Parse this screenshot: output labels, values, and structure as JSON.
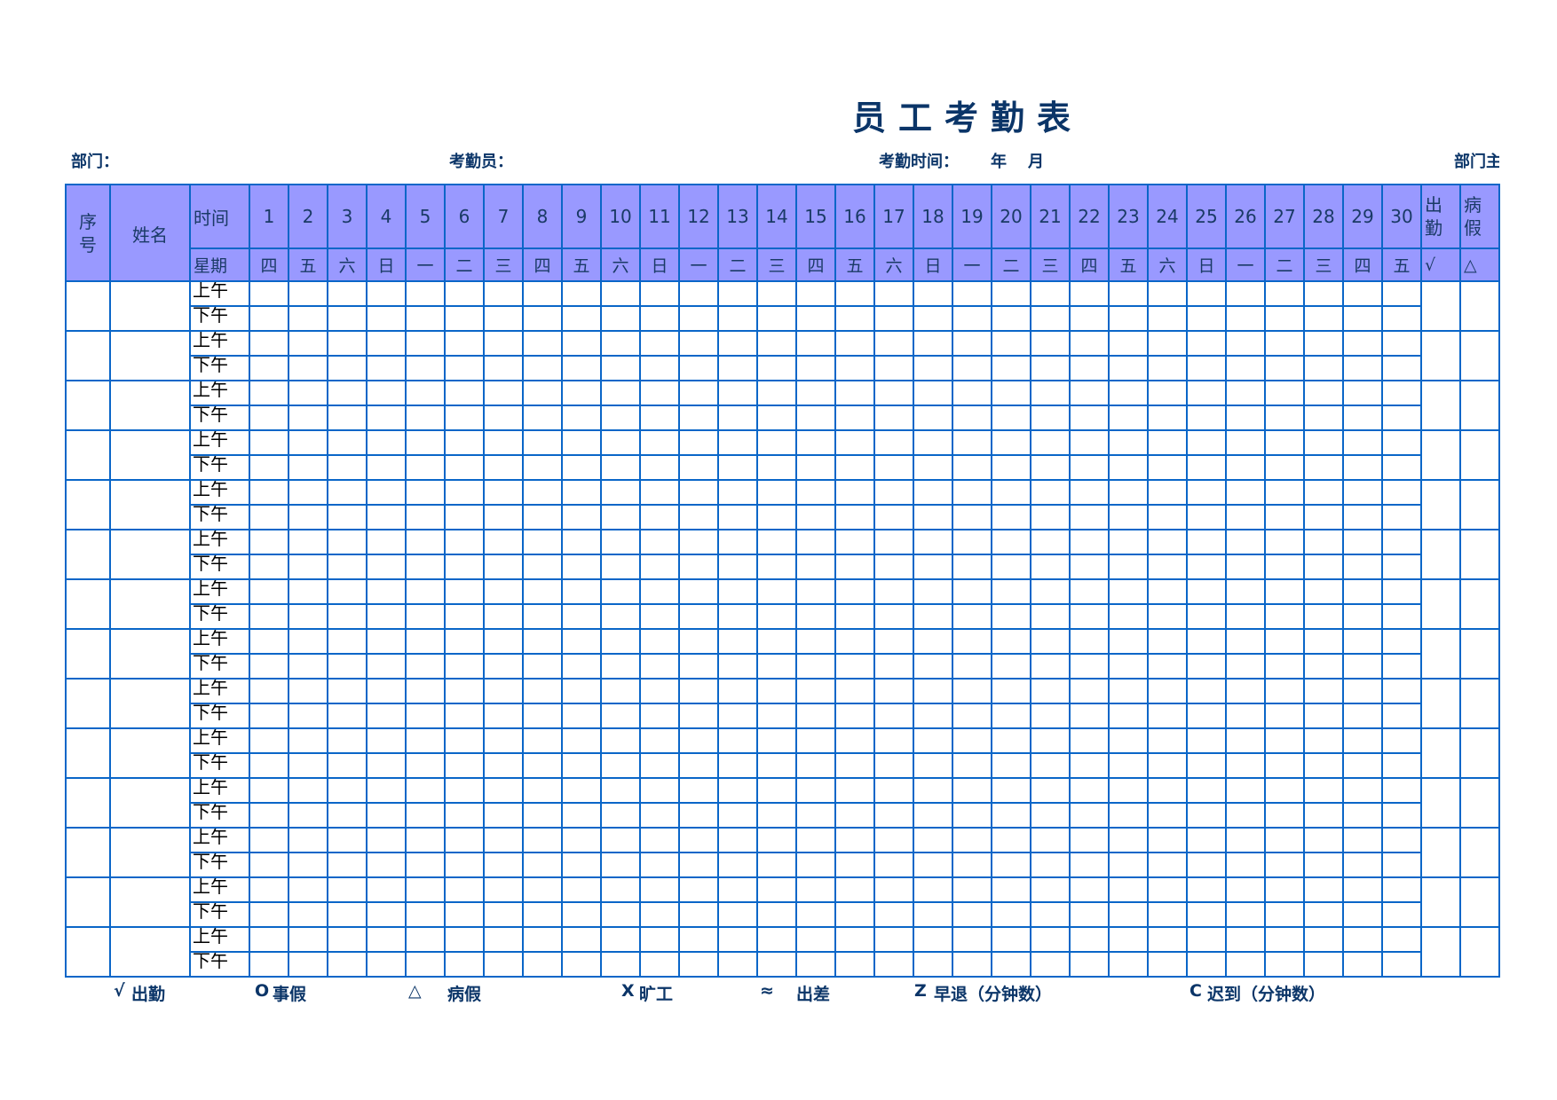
{
  "title": "员工考勤表",
  "meta": {
    "department": "部门：",
    "clerk": "考勤员：",
    "period_label": "考勤时间：",
    "year": "年",
    "month": "月",
    "manager_truncated": "部门主"
  },
  "header": {
    "seq": "序号",
    "seq_line1": "序",
    "seq_line2": "号",
    "name": "姓名",
    "time": "时间",
    "weekday": "星期",
    "attendance_line1": "出",
    "attendance_line2": "勤",
    "sick_line1": "病",
    "sick_line2": "假",
    "attendance_symbol": "√",
    "sick_symbol": "△",
    "days": [
      "1",
      "2",
      "3",
      "4",
      "5",
      "6",
      "7",
      "8",
      "9",
      "10",
      "11",
      "12",
      "13",
      "14",
      "15",
      "16",
      "17",
      "18",
      "19",
      "20",
      "21",
      "22",
      "23",
      "24",
      "25",
      "26",
      "27",
      "28",
      "29",
      "30"
    ],
    "weekdays": [
      "四",
      "五",
      "六",
      "日",
      "一",
      "二",
      "三",
      "四",
      "五",
      "六",
      "日",
      "一",
      "二",
      "三",
      "四",
      "五",
      "六",
      "日",
      "一",
      "二",
      "三",
      "四",
      "五",
      "六",
      "日",
      "一",
      "二",
      "三",
      "四",
      "五"
    ]
  },
  "slots": {
    "am": "上午",
    "pm": "下午"
  },
  "employee_rows": 14,
  "legend": [
    {
      "symbol": "√",
      "label": "出勤"
    },
    {
      "symbol": "O",
      "label": "事假"
    },
    {
      "symbol": "△",
      "label": "病假"
    },
    {
      "symbol": "X",
      "label": "旷工"
    },
    {
      "symbol": "≈",
      "label": "出差"
    },
    {
      "symbol": "Z",
      "label": "早退（分钟数）"
    },
    {
      "symbol": "C",
      "label": "迟到（分钟数）"
    }
  ],
  "colors": {
    "header_bg": "#9999ff",
    "border": "#0a66c8",
    "text": "#0b3568"
  }
}
